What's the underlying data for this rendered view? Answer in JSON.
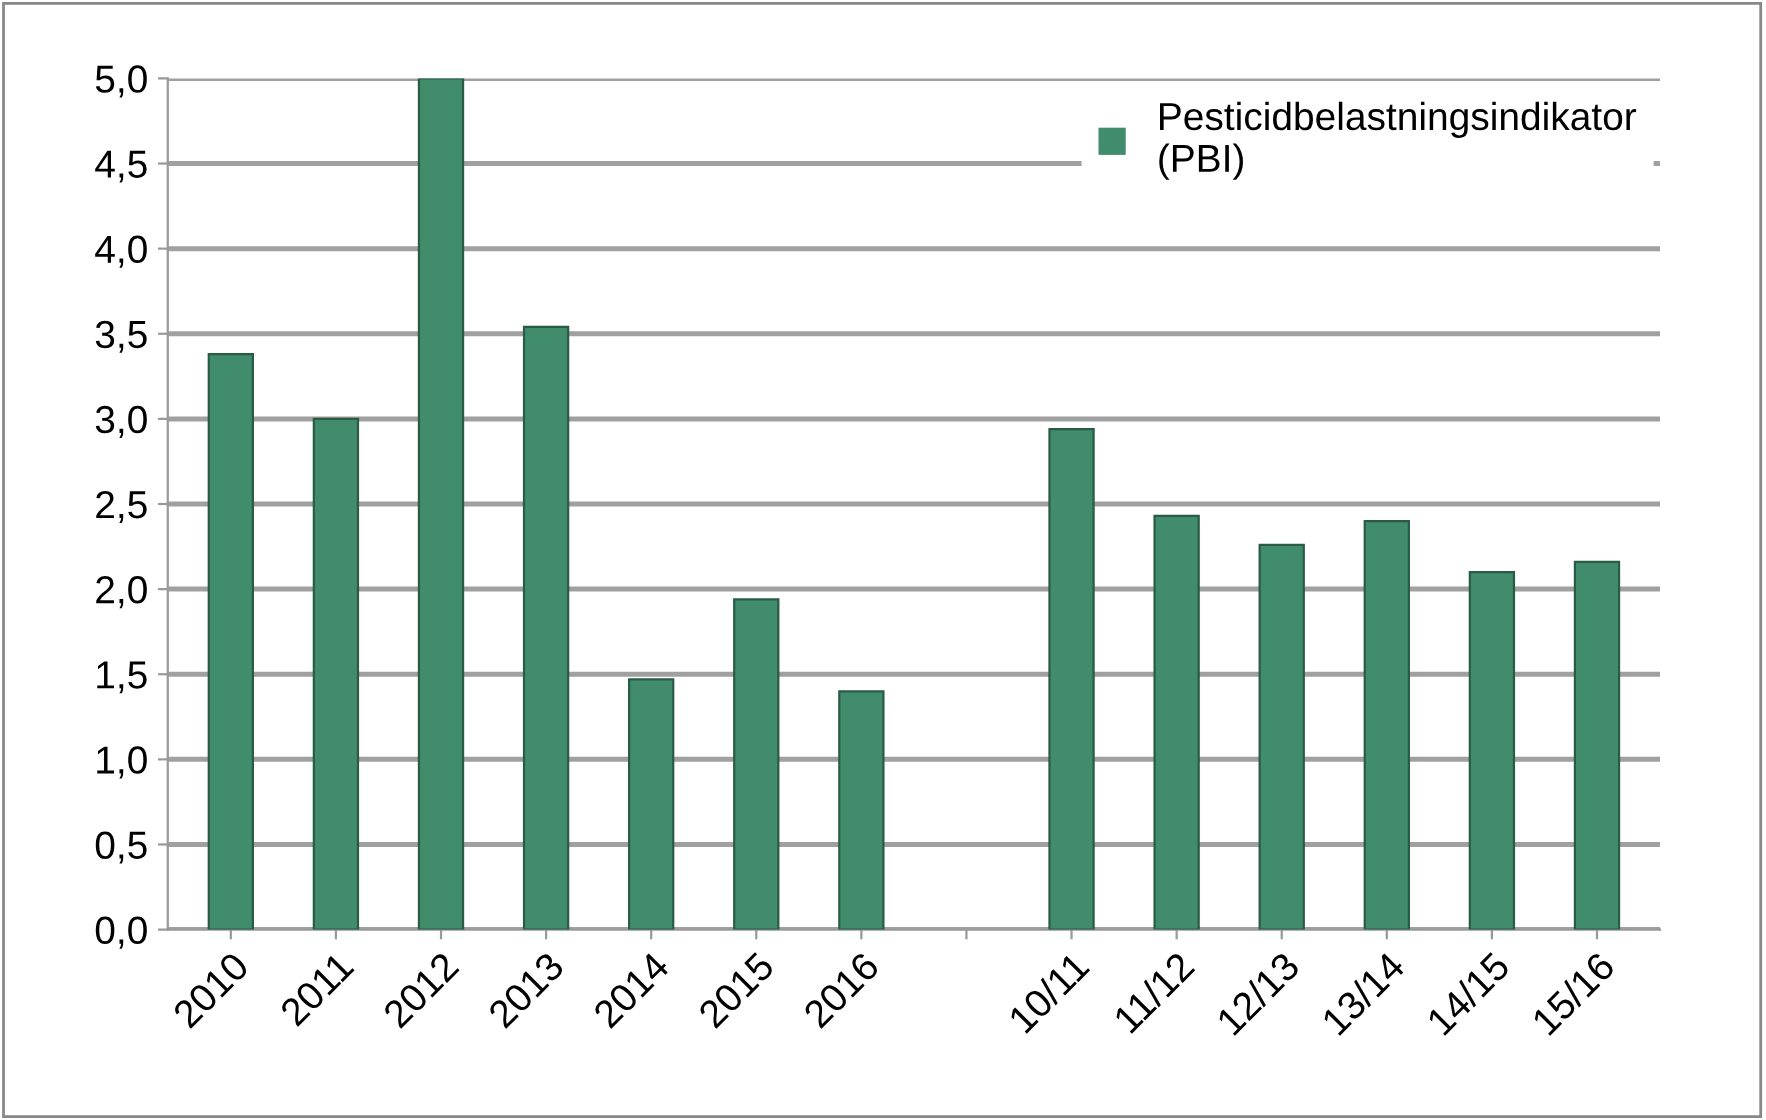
{
  "chart_data": {
    "type": "bar",
    "categories": [
      "2010",
      "2011",
      "2012",
      "2013",
      "2014",
      "2015",
      "2016",
      null,
      "10/11",
      "11/12",
      "12/13",
      "13/14",
      "14/15",
      "15/16"
    ],
    "series": [
      {
        "name": "Pesticidbelastningsindikator\n(PBI)",
        "color": "#418c6c",
        "values": [
          3.38,
          3.0,
          5.0,
          3.54,
          1.47,
          1.94,
          1.4,
          null,
          2.94,
          2.43,
          2.26,
          2.4,
          2.1,
          2.16
        ]
      }
    ],
    "ylim": [
      0,
      5
    ],
    "yticks": [
      {
        "value": 0,
        "label": "0,0"
      },
      {
        "value": 0.5,
        "label": "0,5"
      },
      {
        "value": 1,
        "label": "1,0"
      },
      {
        "value": 1.5,
        "label": "1,5"
      },
      {
        "value": 2,
        "label": "2,0"
      },
      {
        "value": 2.5,
        "label": "2,5"
      },
      {
        "value": 3,
        "label": "3,0"
      },
      {
        "value": 3.5,
        "label": "3,5"
      },
      {
        "value": 4,
        "label": "4,0"
      },
      {
        "value": 4.5,
        "label": "4,5"
      },
      {
        "value": 5,
        "label": "5,0"
      }
    ],
    "grid": "y",
    "legend": "top right"
  }
}
